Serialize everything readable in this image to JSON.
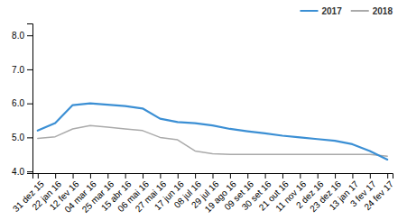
{
  "chart_data": {
    "type": "line",
    "categories": [
      "31 dez 15",
      "22 jan 16",
      "12 fev 16",
      "04 mar 16",
      "25 mar 16",
      "15 abr 16",
      "06 mai 16",
      "27 mai 16",
      "17 jun 16",
      "08 jul 16",
      "29 jul 16",
      "19 ago 16",
      "09 set 16",
      "30 set 16",
      "21 out 16",
      "11 nov 16",
      "2 dez 16",
      "23 dez 16",
      "13 jan 17",
      "3 fev 17",
      "24 fev 17"
    ],
    "series": [
      {
        "name": "2017",
        "color": "#3B8FD4",
        "values": [
          5.2,
          5.42,
          5.95,
          6.0,
          5.96,
          5.92,
          5.85,
          5.55,
          5.45,
          5.42,
          5.35,
          5.25,
          5.18,
          5.12,
          5.05,
          5.0,
          4.95,
          4.9,
          4.8,
          4.6,
          4.35
        ]
      },
      {
        "name": "2018",
        "color": "#aaaaaa",
        "values": [
          4.97,
          5.02,
          5.25,
          5.35,
          5.3,
          5.25,
          5.2,
          5.0,
          4.93,
          4.6,
          4.52,
          4.5,
          4.5,
          4.5,
          4.5,
          4.5,
          4.5,
          4.5,
          4.5,
          4.5,
          4.45
        ]
      }
    ],
    "ylim": [
      3.95,
      8.35
    ],
    "yticks": [
      {
        "value": 4.0,
        "label": "4.0"
      },
      {
        "value": 5.0,
        "label": "5.0"
      },
      {
        "value": 6.0,
        "label": "6.0"
      },
      {
        "value": 7.0,
        "label": "7.0"
      },
      {
        "value": 8.0,
        "label": "8.0"
      }
    ],
    "grid": false,
    "legend": "upper right"
  }
}
